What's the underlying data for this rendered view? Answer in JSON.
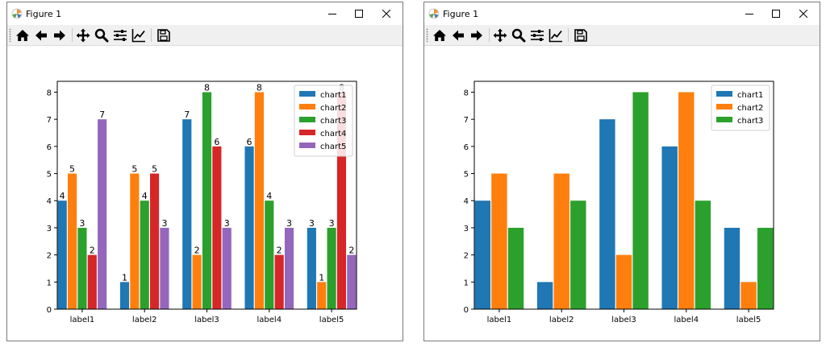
{
  "windows": [
    {
      "title": "Figure 1",
      "toolbar": [
        "home-icon",
        "back-icon",
        "forward-icon",
        "pan-icon",
        "zoom-icon",
        "configure-subplots-icon",
        "edit-axis-icon",
        "save-icon"
      ]
    },
    {
      "title": "Figure 1",
      "toolbar": [
        "home-icon",
        "back-icon",
        "forward-icon",
        "pan-icon",
        "zoom-icon",
        "configure-subplots-icon",
        "edit-axis-icon",
        "save-icon"
      ]
    }
  ],
  "chart_data": [
    {
      "type": "bar",
      "categories": [
        "label1",
        "label2",
        "label3",
        "label4",
        "label5"
      ],
      "series": [
        {
          "name": "chart1",
          "values": [
            4,
            1,
            7,
            6,
            3
          ],
          "color": "#1f77b4"
        },
        {
          "name": "chart2",
          "values": [
            5,
            5,
            2,
            8,
            1
          ],
          "color": "#ff7f0e"
        },
        {
          "name": "chart3",
          "values": [
            3,
            4,
            8,
            4,
            3
          ],
          "color": "#2ca02c"
        },
        {
          "name": "chart4",
          "values": [
            2,
            5,
            6,
            2,
            8
          ],
          "color": "#d62728"
        },
        {
          "name": "chart5",
          "values": [
            7,
            3,
            3,
            3,
            2
          ],
          "color": "#9467bd"
        }
      ],
      "yticks": [
        "0",
        "1",
        "2",
        "3",
        "4",
        "5",
        "6",
        "7",
        "8"
      ],
      "ylim": [
        0,
        8.4
      ],
      "data_labels": true,
      "legend": "top-right",
      "grid": false
    },
    {
      "type": "bar",
      "categories": [
        "label1",
        "label2",
        "label3",
        "label4",
        "label5"
      ],
      "series": [
        {
          "name": "chart1",
          "values": [
            4,
            1,
            7,
            6,
            3
          ],
          "color": "#1f77b4"
        },
        {
          "name": "chart2",
          "values": [
            5,
            5,
            2,
            8,
            1
          ],
          "color": "#ff7f0e"
        },
        {
          "name": "chart3",
          "values": [
            3,
            4,
            8,
            4,
            3
          ],
          "color": "#2ca02c"
        }
      ],
      "yticks": [
        "0",
        "1",
        "2",
        "3",
        "4",
        "5",
        "6",
        "7",
        "8"
      ],
      "ylim": [
        0,
        8.4
      ],
      "data_labels": false,
      "legend": "top-right",
      "grid": false
    }
  ]
}
